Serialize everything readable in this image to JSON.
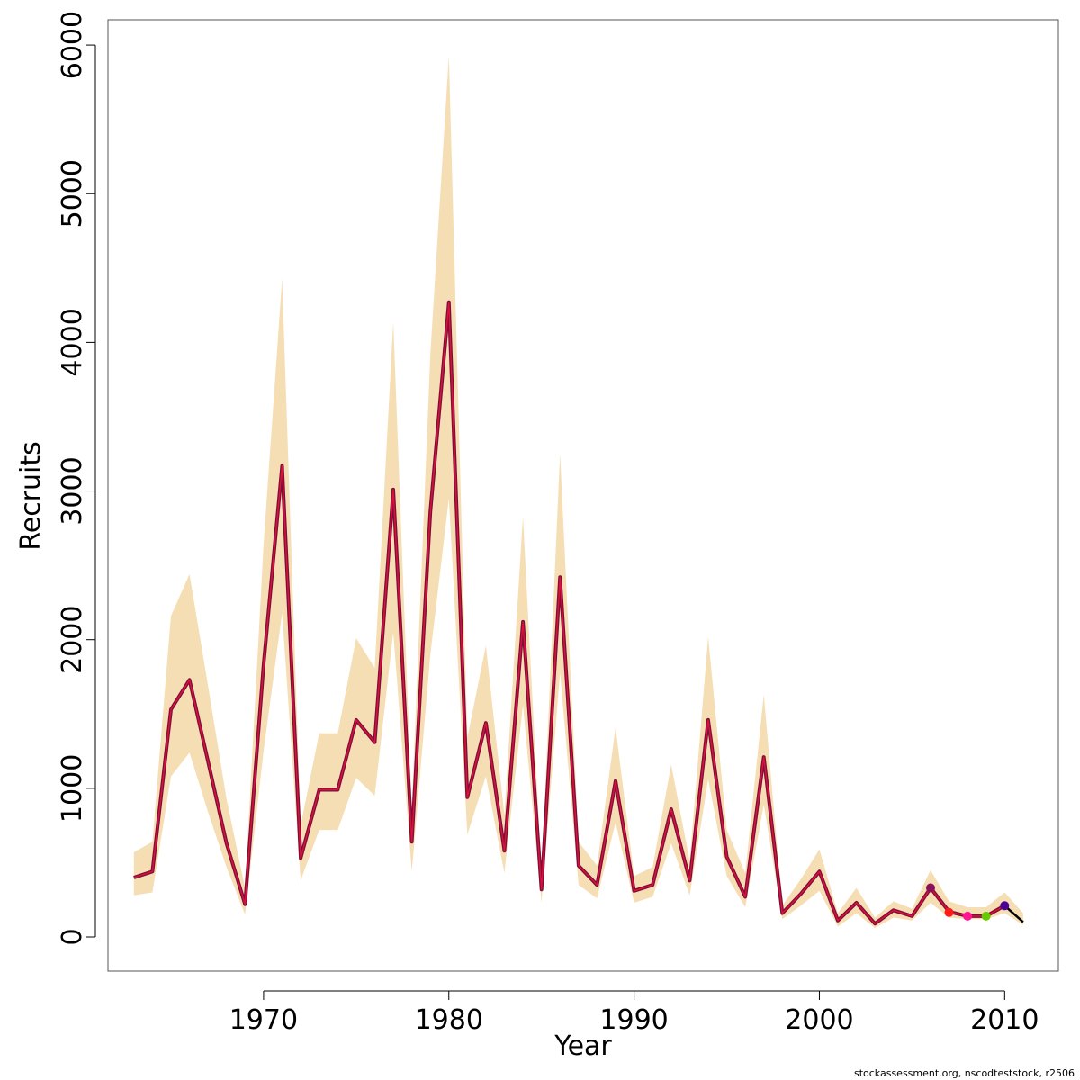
{
  "chart_data": {
    "type": "line",
    "xlabel": "Year",
    "ylabel": "Recruits",
    "xlim": [
      1961.6,
      2012.9
    ],
    "ylim": [
      -230,
      6170
    ],
    "x_ticks": [
      1970,
      1980,
      1990,
      2000,
      2010
    ],
    "y_ticks": [
      0,
      1000,
      2000,
      3000,
      4000,
      5000,
      6000
    ],
    "x_tick_labels": [
      "1970",
      "1980",
      "1990",
      "2000",
      "2010"
    ],
    "y_tick_labels": [
      "0",
      "1000",
      "2000",
      "3000",
      "4000",
      "5000",
      "6000"
    ],
    "band_color": "#f5deb3",
    "colors": {
      "estimate": "#7a0f3a",
      "estimate_core": "#e0103a",
      "retro": "#000000"
    },
    "years": [
      1963,
      1964,
      1965,
      1966,
      1967,
      1968,
      1969,
      1970,
      1971,
      1972,
      1973,
      1974,
      1975,
      1976,
      1977,
      1978,
      1979,
      1980,
      1981,
      1982,
      1983,
      1984,
      1985,
      1986,
      1987,
      1988,
      1989,
      1990,
      1991,
      1992,
      1993,
      1994,
      1995,
      1996,
      1997,
      1998,
      1999,
      2000,
      2001,
      2002,
      2003,
      2004,
      2005,
      2006,
      2007,
      2008,
      2009,
      2010,
      2011
    ],
    "lower": [
      280,
      300,
      1080,
      1240,
      840,
      470,
      150,
      1250,
      2180,
      380,
      720,
      720,
      1070,
      950,
      2050,
      440,
      1900,
      2950,
      690,
      1080,
      430,
      1560,
      230,
      1780,
      350,
      260,
      770,
      230,
      270,
      630,
      280,
      1060,
      410,
      200,
      890,
      120,
      210,
      310,
      70,
      160,
      60,
      130,
      110,
      230,
      130,
      120,
      120,
      160,
      80
    ],
    "upper": [
      570,
      640,
      2160,
      2440,
      1690,
      930,
      330,
      2640,
      4430,
      750,
      1370,
      1370,
      2010,
      1810,
      4140,
      870,
      3920,
      5930,
      1340,
      1960,
      820,
      2830,
      430,
      3250,
      640,
      480,
      1410,
      410,
      470,
      1160,
      510,
      2020,
      720,
      430,
      1630,
      210,
      390,
      590,
      160,
      330,
      130,
      240,
      190,
      450,
      240,
      200,
      200,
      300,
      160
    ],
    "estimate": [
      400,
      440,
      1530,
      1730,
      1180,
      630,
      220,
      1830,
      3170,
      530,
      990,
      990,
      1460,
      1310,
      3010,
      640,
      2860,
      4270,
      940,
      1440,
      580,
      2120,
      320,
      2420,
      480,
      350,
      1050,
      310,
      350,
      860,
      380,
      1460,
      540,
      270,
      1210,
      160,
      290,
      440,
      110,
      230,
      90,
      180,
      140,
      330,
      170,
      140,
      140,
      210,
      100
    ],
    "retro_peels": [
      {
        "year": 2006,
        "value": 330,
        "color": "#8b0f5a"
      },
      {
        "year": 2007,
        "value": 165,
        "color": "#ff1a1a"
      },
      {
        "year": 2008,
        "value": 140,
        "color": "#ff1493"
      },
      {
        "year": 2009,
        "value": 140,
        "color": "#66cc00"
      },
      {
        "year": 2010,
        "value": 210,
        "color": "#4b0096"
      }
    ],
    "retro_tail": {
      "years": [
        2010,
        2011
      ],
      "values": [
        210,
        100
      ]
    }
  },
  "footer": "stockassessment.org, nscodteststock, r2506"
}
